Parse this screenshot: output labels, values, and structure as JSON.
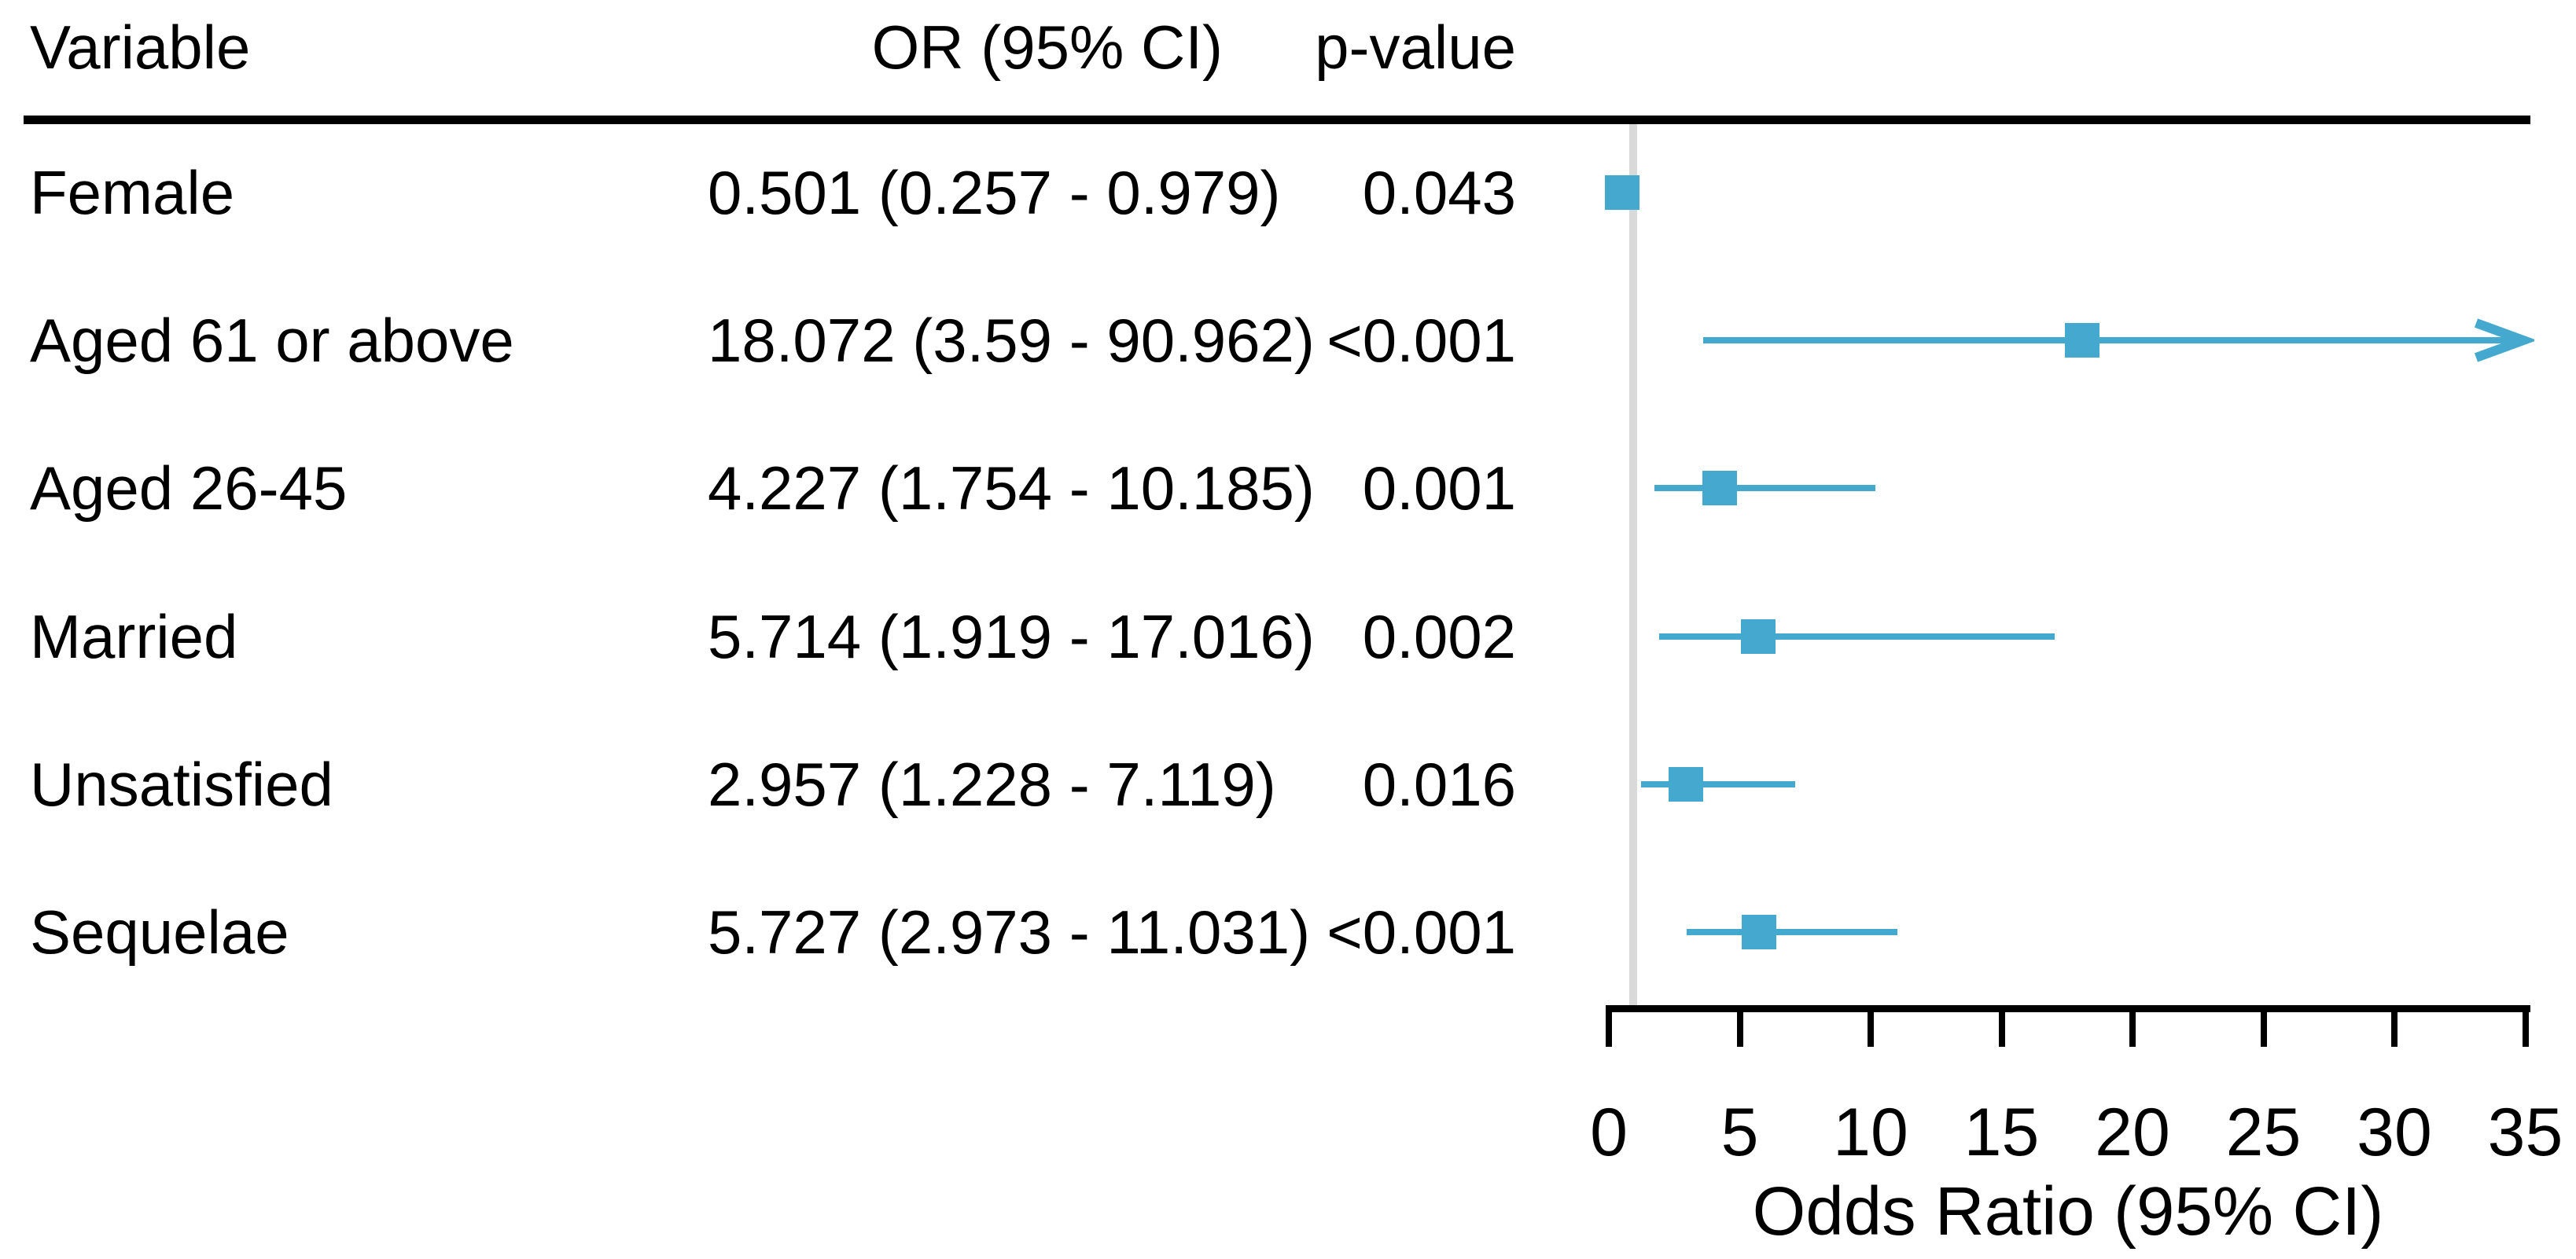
{
  "table": {
    "headers": {
      "variable": "Variable",
      "or_ci": "OR (95% CI)",
      "p_value": "p-value"
    }
  },
  "chart_data": {
    "type": "forest",
    "rows": [
      {
        "variable": "Female",
        "or_ci_text": "0.501 (0.257 - 0.979)",
        "p_value": "0.043",
        "or": 0.501,
        "ci_lower": 0.257,
        "ci_upper": 0.979,
        "clipped": false
      },
      {
        "variable": "Aged 61 or above",
        "or_ci_text": "18.072 (3.59 - 90.962)",
        "p_value": "<0.001",
        "or": 18.072,
        "ci_lower": 3.59,
        "ci_upper": 90.962,
        "clipped": true
      },
      {
        "variable": "Aged 26-45",
        "or_ci_text": "4.227 (1.754 - 10.185)",
        "p_value": "0.001",
        "or": 4.227,
        "ci_lower": 1.754,
        "ci_upper": 10.185,
        "clipped": false
      },
      {
        "variable": "Married",
        "or_ci_text": "5.714 (1.919 - 17.016)",
        "p_value": "0.002",
        "or": 5.714,
        "ci_lower": 1.919,
        "ci_upper": 17.016,
        "clipped": false
      },
      {
        "variable": "Unsatisfied",
        "or_ci_text": "2.957 (1.228 - 7.119)",
        "p_value": "0.016",
        "or": 2.957,
        "ci_lower": 1.228,
        "ci_upper": 7.119,
        "clipped": false
      },
      {
        "variable": "Sequelae",
        "or_ci_text": "5.727 (2.973 - 11.031)",
        "p_value": "<0.001",
        "or": 5.727,
        "ci_lower": 2.973,
        "ci_upper": 11.031,
        "clipped": false
      }
    ],
    "axis": {
      "ticks": [
        0,
        5,
        10,
        15,
        20,
        25,
        30,
        35
      ],
      "range": [
        0,
        35
      ],
      "label": "Odds Ratio (95% CI)",
      "reference_line": 1
    },
    "colors": {
      "marker": "#45a8ce",
      "reference_line": "#d9d9d9",
      "axis": "#000000",
      "text": "#000000"
    }
  }
}
